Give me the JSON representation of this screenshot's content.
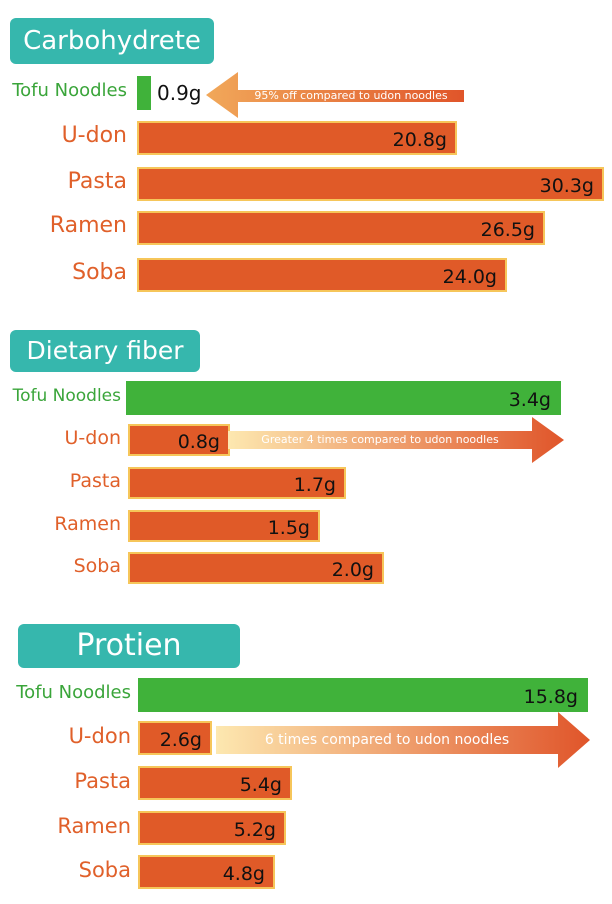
{
  "chart_data": [
    {
      "type": "bar",
      "title": "Carbohydrete",
      "categories": [
        "Tofu Noodles",
        "U-don",
        "Pasta",
        "Ramen",
        "Soba"
      ],
      "values": [
        0.9,
        20.8,
        30.3,
        26.5,
        24.0
      ],
      "value_labels": [
        "0.9g",
        "20.8g",
        "30.3g",
        "26.5g",
        "24.0g"
      ],
      "annotation": "95% off compared to udon noodles",
      "colors": {
        "highlight": "#40b23a",
        "bar": "#e05a28"
      }
    },
    {
      "type": "bar",
      "title": "Dietary fiber",
      "categories": [
        "Tofu Noodles",
        "U-don",
        "Pasta",
        "Ramen",
        "Soba"
      ],
      "values": [
        3.4,
        0.8,
        1.7,
        1.5,
        2.0
      ],
      "value_labels": [
        "3.4g",
        "0.8g",
        "1.7g",
        "1.5g",
        "2.0g"
      ],
      "annotation": "Greater  4 times compared to udon noodles",
      "colors": {
        "highlight": "#40b23a",
        "bar": "#e05a28"
      }
    },
    {
      "type": "bar",
      "title": "Protien",
      "categories": [
        "Tofu Noodles",
        "U-don",
        "Pasta",
        "Ramen",
        "Soba"
      ],
      "values": [
        15.8,
        2.6,
        5.4,
        5.2,
        4.8
      ],
      "value_labels": [
        "15.8g",
        "2.6g",
        "5.4g",
        "5.2g",
        "4.8g"
      ],
      "annotation": "6 times compared to udon noodles",
      "colors": {
        "highlight": "#40b23a",
        "bar": "#e05a28"
      }
    }
  ]
}
